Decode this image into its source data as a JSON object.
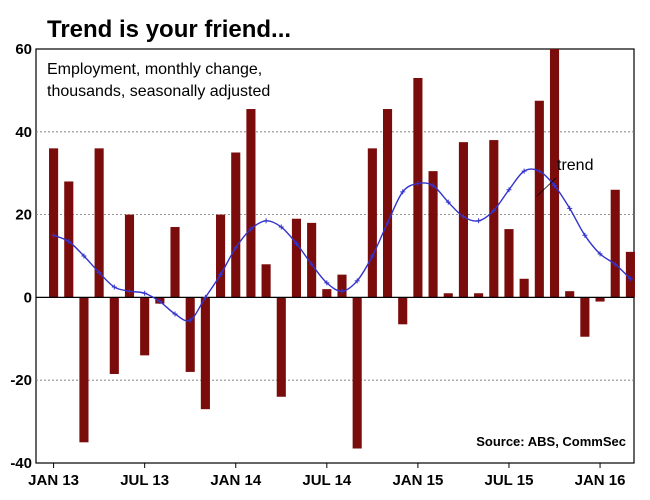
{
  "chart_data": {
    "type": "bar",
    "title": "Trend is your friend...",
    "subtitle_lines": [
      "Employment, monthly change,",
      "thousands, seasonally adjusted"
    ],
    "source": "Source: ABS, CommSec",
    "ylim": [
      -40,
      60
    ],
    "yticks": [
      60,
      40,
      20,
      0,
      -20,
      -40
    ],
    "grid": true,
    "xtick_labels": [
      "JAN 13",
      "JUL 13",
      "JAN 14",
      "JUL 14",
      "JAN 15",
      "JUL 15",
      "JAN 16"
    ],
    "series": [
      {
        "type": "bar",
        "color": "#7b0c0c",
        "values": [
          36,
          28,
          -35,
          36,
          -18.5,
          20,
          -14,
          -1.5,
          17,
          -18,
          -27,
          20,
          35,
          45.5,
          8,
          -24,
          19,
          18,
          2,
          5.5,
          -36.5,
          36,
          45.5,
          -6.5,
          53,
          30.5,
          1,
          37.5,
          1,
          38,
          16.5,
          4.5,
          47.5,
          60,
          1.5,
          -9.5,
          -1,
          26,
          11
        ]
      },
      {
        "name": "trend",
        "type": "line",
        "color": "#3333cc",
        "values": [
          15,
          13.5,
          10,
          6,
          2.5,
          1.5,
          1,
          -1,
          -4,
          -5.5,
          0,
          5.5,
          12,
          16.5,
          18.5,
          17,
          13,
          8,
          3.5,
          1.5,
          4,
          10,
          18,
          25.5,
          27.5,
          27,
          23,
          19.5,
          18.5,
          21,
          26,
          30.5,
          30.5,
          27,
          21.5,
          15,
          10.5,
          8,
          4.5
        ]
      }
    ]
  }
}
